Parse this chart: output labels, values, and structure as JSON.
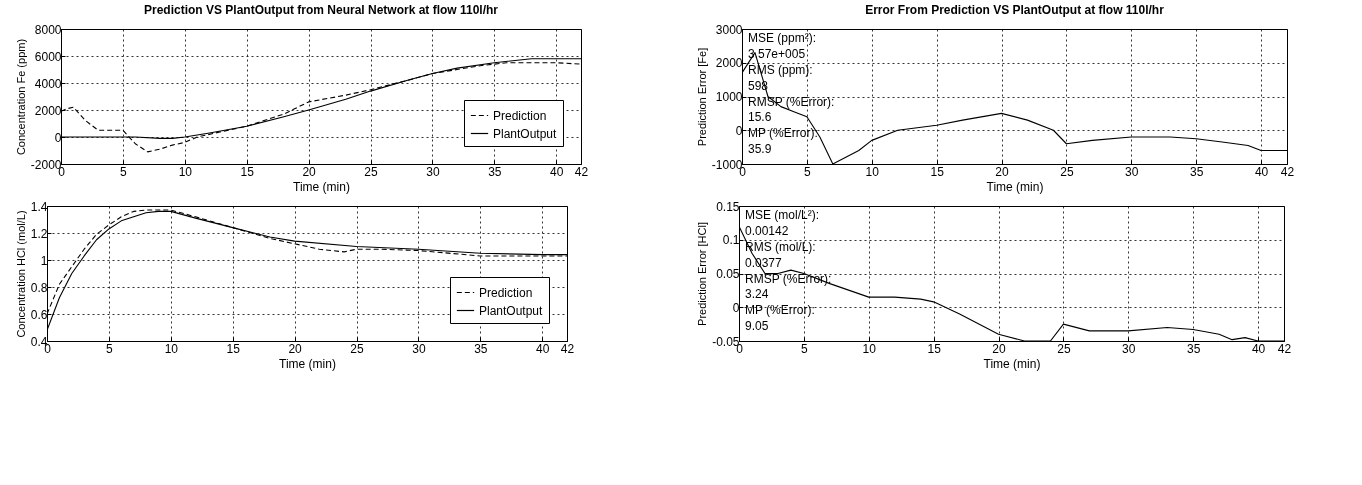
{
  "chart_data": [
    {
      "type": "line",
      "title": "Prediction VS PlantOutput from Neural Network at flow 110l/hr",
      "xlabel": "Time (min)",
      "ylabel": "Concentration Fe (ppm)",
      "xlim": [
        0,
        42
      ],
      "xticks": [
        0,
        5,
        10,
        15,
        20,
        25,
        30,
        35,
        40,
        42
      ],
      "ylim": [
        -2000,
        8000
      ],
      "yticks": [
        -2000,
        0,
        2000,
        4000,
        6000,
        8000
      ],
      "grid": true,
      "legend": "bottom right",
      "series": [
        {
          "name": "Prediction",
          "color": "#000000",
          "line_style": "dashed",
          "x": [
            0,
            0.5,
            1,
            2,
            3,
            4,
            5,
            6,
            7,
            8,
            9,
            10,
            11,
            13,
            15,
            18,
            20,
            23,
            25,
            28,
            30,
            32,
            34,
            36,
            38,
            40,
            42
          ],
          "values": [
            1900,
            2100,
            2200,
            1200,
            500,
            500,
            500,
            -500,
            -1100,
            -900,
            -600,
            -400,
            0,
            400,
            800,
            1700,
            2600,
            3100,
            3500,
            4200,
            4700,
            5000,
            5300,
            5500,
            5500,
            5500,
            5400
          ]
        },
        {
          "name": "PlantOutput",
          "color": "#000000",
          "line_style": "solid",
          "x": [
            0,
            2,
            4,
            6,
            8,
            9,
            10,
            12,
            15,
            18,
            20,
            23,
            25,
            28,
            30,
            32,
            35,
            38,
            40,
            42
          ],
          "values": [
            0,
            0,
            0,
            0,
            -100,
            -100,
            0,
            300,
            800,
            1500,
            2000,
            2800,
            3400,
            4200,
            4700,
            5100,
            5500,
            5800,
            5800,
            5800
          ]
        }
      ]
    },
    {
      "type": "line",
      "title": "Error From Prediction VS PlantOutput at flow 110l/hr",
      "xlabel": "Time (min)",
      "ylabel": "Prediction Error [Fe]",
      "xlim": [
        0,
        42
      ],
      "xticks": [
        0,
        5,
        10,
        15,
        20,
        25,
        30,
        35,
        40,
        42
      ],
      "ylim": [
        -1000,
        3000
      ],
      "yticks": [
        -1000,
        0,
        1000,
        2000,
        3000
      ],
      "grid": true,
      "annotations": [
        "MSE (ppm²):",
        "3.57e+005",
        "RMS (ppm):",
        "598",
        "RMSP (%Error):",
        "15.6",
        "MP (%Error):",
        "35.9"
      ],
      "series": [
        {
          "color": "#000000",
          "line_style": "solid",
          "x": [
            0,
            1,
            2,
            3,
            4,
            5,
            6,
            7,
            8,
            9,
            10,
            12,
            15,
            17,
            20,
            22,
            24,
            25,
            27,
            30,
            33,
            35,
            37,
            38,
            39,
            40,
            42
          ],
          "values": [
            1700,
            2300,
            1000,
            700,
            550,
            400,
            -200,
            -1000,
            -800,
            -600,
            -300,
            0,
            150,
            300,
            500,
            300,
            0,
            -400,
            -300,
            -200,
            -200,
            -250,
            -350,
            -400,
            -450,
            -600,
            -600
          ]
        }
      ]
    },
    {
      "type": "line",
      "xlabel": "Time (min)",
      "ylabel": "Concentration HCl (mol/L)",
      "xlim": [
        0,
        42
      ],
      "xticks": [
        0,
        5,
        10,
        15,
        20,
        25,
        30,
        35,
        40,
        42
      ],
      "ylim": [
        0.4,
        1.4
      ],
      "yticks": [
        0.4,
        0.6,
        0.8,
        1,
        1.2,
        1.4
      ],
      "grid": true,
      "legend": "bottom right",
      "series": [
        {
          "name": "Prediction",
          "color": "#000000",
          "line_style": "dashed",
          "x": [
            0,
            1,
            2,
            3,
            4,
            5,
            6,
            7,
            8,
            10,
            12,
            15,
            18,
            20,
            22,
            24,
            25,
            27,
            30,
            35,
            40,
            42
          ],
          "values": [
            0.6,
            0.82,
            0.95,
            1.08,
            1.19,
            1.26,
            1.32,
            1.36,
            1.37,
            1.37,
            1.32,
            1.24,
            1.16,
            1.12,
            1.08,
            1.06,
            1.08,
            1.08,
            1.07,
            1.03,
            1.03,
            1.03
          ]
        },
        {
          "name": "PlantOutput",
          "color": "#000000",
          "line_style": "solid",
          "x": [
            0,
            1,
            2,
            3,
            4,
            5,
            6,
            7,
            8,
            9,
            10,
            12,
            15,
            18,
            20,
            25,
            30,
            35,
            40,
            42
          ],
          "values": [
            0.48,
            0.72,
            0.9,
            1.03,
            1.15,
            1.23,
            1.29,
            1.32,
            1.35,
            1.36,
            1.36,
            1.31,
            1.24,
            1.17,
            1.14,
            1.1,
            1.08,
            1.05,
            1.04,
            1.04
          ]
        }
      ]
    },
    {
      "type": "line",
      "xlabel": "Time (min)",
      "ylabel": "Prediction Error [HCl]",
      "xlim": [
        0,
        42
      ],
      "xticks": [
        0,
        5,
        10,
        15,
        20,
        25,
        30,
        35,
        40,
        42
      ],
      "ylim": [
        -0.05,
        0.15
      ],
      "yticks": [
        -0.05,
        0,
        0.05,
        0.1,
        0.15
      ],
      "grid": true,
      "annotations": [
        "MSE (mol/L²):",
        "0.00142",
        "RMS (mol/L):",
        "0.0377",
        "RMSP (%Error):",
        "3.24",
        "MP (%Error):",
        "9.05"
      ],
      "series": [
        {
          "color": "#000000",
          "line_style": "solid",
          "x": [
            0,
            1,
            2,
            3,
            4,
            5,
            7,
            10,
            12,
            14,
            15,
            17,
            20,
            22,
            24,
            25,
            27,
            30,
            33,
            35,
            37,
            38,
            39,
            40,
            42
          ],
          "values": [
            0.12,
            0.08,
            0.05,
            0.05,
            0.055,
            0.05,
            0.035,
            0.015,
            0.015,
            0.012,
            0.008,
            -0.01,
            -0.04,
            -0.05,
            -0.05,
            -0.025,
            -0.035,
            -0.035,
            -0.03,
            -0.033,
            -0.04,
            -0.048,
            -0.045,
            -0.05,
            -0.05
          ]
        }
      ]
    }
  ]
}
